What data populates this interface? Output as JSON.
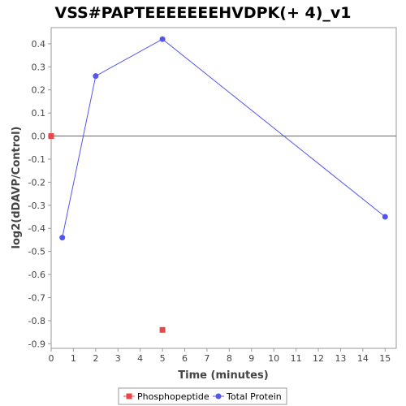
{
  "chart_data": {
    "type": "scatter",
    "title": "VSS#PAPTEEEEEEEHVDPK(+ 4)_v1",
    "xlabel": "Time (minutes)",
    "ylabel": "log2(dDAVP/Control)",
    "xlim": [
      0,
      15.5
    ],
    "ylim": [
      -0.92,
      0.47
    ],
    "xticks": [
      0,
      1,
      2,
      3,
      4,
      5,
      6,
      7,
      8,
      9,
      10,
      11,
      12,
      13,
      14,
      15
    ],
    "xtick_labels": [
      "0",
      "1",
      "2",
      "3",
      "4",
      "5",
      "6",
      "7",
      "8",
      "9",
      "10",
      "11",
      "12",
      "13",
      "14",
      "15"
    ],
    "yticks": [
      0.4,
      0.3,
      0.2,
      0.1,
      0.0,
      -0.1,
      -0.2,
      -0.3,
      -0.4,
      -0.5,
      -0.6,
      -0.7,
      -0.8,
      -0.9
    ],
    "ytick_labels": [
      "0.4",
      "0.3",
      "0.2",
      "0.1",
      "0.0",
      "-0.1",
      "-0.2",
      "-0.3",
      "-0.4",
      "-0.5",
      "-0.6",
      "-0.7",
      "-0.8",
      "-0.9"
    ],
    "grid": false,
    "zero_line": true,
    "legend_position": "bottom",
    "series": [
      {
        "name": "Phosphopeptide",
        "color": "#e8474a",
        "marker": "square",
        "line": false,
        "x": [
          0,
          5
        ],
        "y": [
          0.0,
          -0.84
        ]
      },
      {
        "name": "Total Protein",
        "color": "#5555ee",
        "marker": "circle",
        "line": true,
        "x": [
          0.5,
          2,
          5,
          15
        ],
        "y": [
          -0.44,
          0.26,
          0.42,
          -0.35
        ]
      }
    ]
  }
}
